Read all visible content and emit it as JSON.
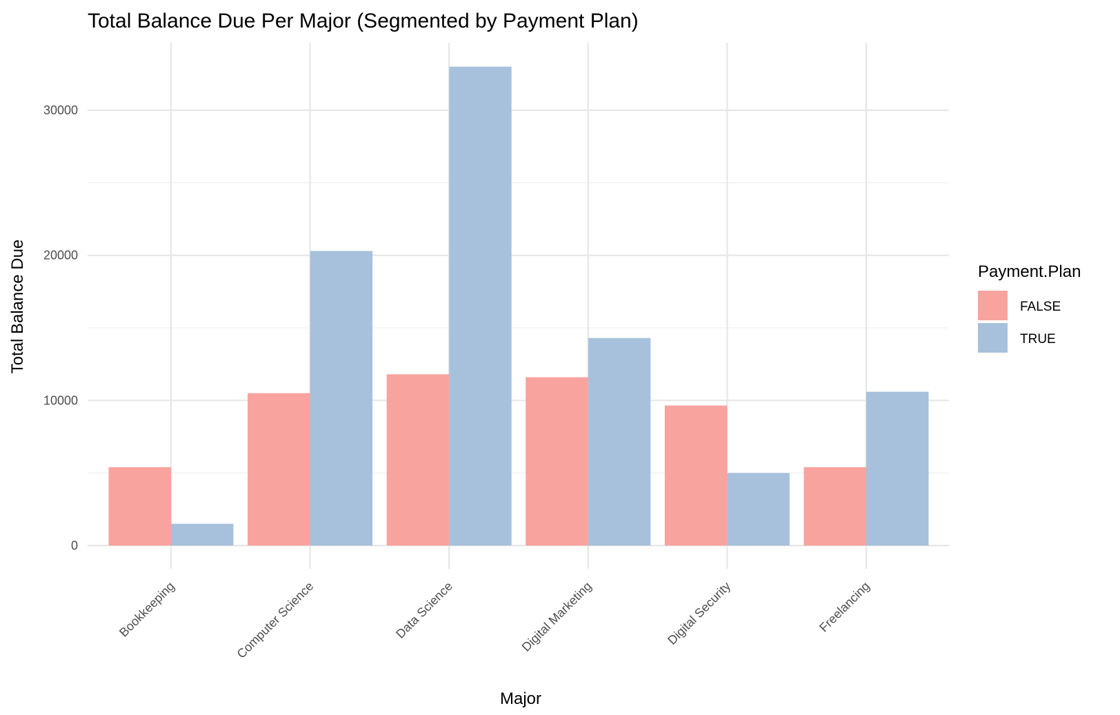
{
  "chart_data": {
    "type": "bar",
    "title": "Total Balance Due Per Major (Segmented by Payment Plan)",
    "xlabel": "Major",
    "ylabel": "Total Balance Due",
    "categories": [
      "Bookkeeping",
      "Computer Science",
      "Data Science",
      "Digital Marketing",
      "Digital Security",
      "Freelancing"
    ],
    "series": [
      {
        "name": "FALSE",
        "color": "#F8A39E",
        "values": [
          5400,
          10500,
          11800,
          11600,
          9650,
          5400
        ]
      },
      {
        "name": "TRUE",
        "color": "#A7C1DC",
        "values": [
          1500,
          20300,
          33000,
          14300,
          5000,
          10600
        ]
      }
    ],
    "ylim": [
      0,
      34000
    ],
    "yticks": [
      0,
      10000,
      20000,
      30000
    ],
    "ytick_labels": [
      "0",
      "10000",
      "20000",
      "30000"
    ],
    "grid": true,
    "legend": {
      "title": "Payment.Plan",
      "placement": "right",
      "entries": [
        "FALSE",
        "TRUE"
      ]
    }
  }
}
